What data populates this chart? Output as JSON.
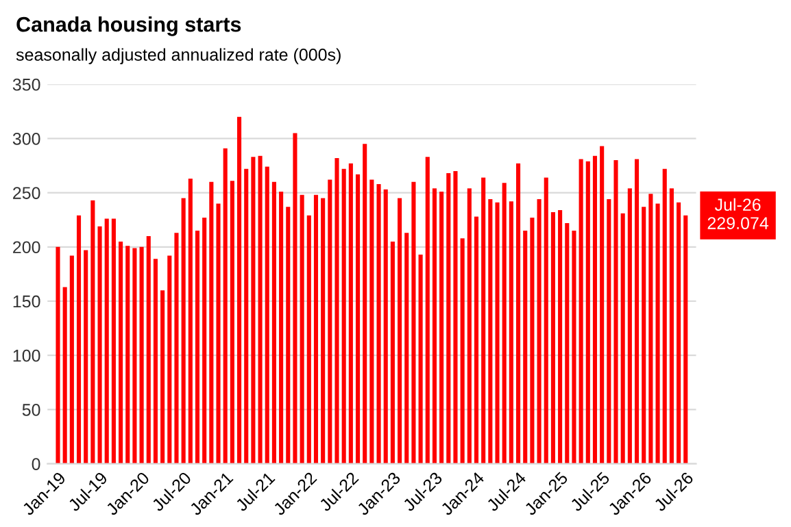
{
  "chart_data": {
    "type": "bar",
    "title": "Canada housing starts",
    "subtitle": "seasonally adjusted annualized rate (000s)",
    "categories": [
      "Jan-19",
      null,
      null,
      null,
      null,
      null,
      "Jul-19",
      null,
      null,
      null,
      null,
      null,
      "Jan-20",
      null,
      null,
      null,
      null,
      null,
      "Jul-20",
      null,
      null,
      null,
      null,
      null,
      "Jan-21",
      null,
      null,
      null,
      null,
      null,
      "Jul-21",
      null,
      null,
      null,
      null,
      null,
      "Jan-22",
      null,
      null,
      null,
      null,
      null,
      "Jul-22",
      null,
      null,
      null,
      null,
      null,
      "Jan-23",
      null,
      null,
      null,
      null,
      null,
      "Jul-23",
      null,
      null,
      null,
      null,
      null,
      "Jan-24",
      null,
      null,
      null,
      null,
      null,
      "Jul-24",
      null,
      null,
      null,
      null,
      null,
      "Jan-25",
      null,
      null,
      null,
      null,
      null,
      "Jul-25",
      null,
      null,
      null,
      null,
      null,
      "Jan-26",
      null,
      null,
      null,
      null,
      null,
      "Jul-26"
    ],
    "values": [
      200,
      163,
      192,
      229,
      197,
      243,
      219,
      226,
      226,
      205,
      201,
      199,
      200,
      210,
      189,
      160,
      192,
      213,
      245,
      263,
      215,
      227,
      260,
      240,
      291,
      261,
      320,
      272,
      283,
      284,
      274,
      260,
      251,
      237,
      305,
      248,
      229,
      248,
      245,
      262,
      282,
      272,
      277,
      267,
      295,
      262,
      258,
      253,
      205,
      245,
      213,
      260,
      193,
      283,
      254,
      251,
      268,
      270,
      208,
      254,
      228,
      264,
      244,
      241,
      259,
      242,
      277,
      215,
      227,
      244,
      264,
      232,
      234,
      222,
      215,
      281,
      279,
      284,
      293,
      244,
      280,
      231,
      254,
      281,
      237,
      249,
      240,
      272,
      254,
      241,
      229.074
    ],
    "color": "#ff0000",
    "ylim": [
      0,
      350
    ],
    "yticks": [
      0,
      50,
      100,
      150,
      200,
      250,
      300,
      350
    ],
    "grid": "y",
    "annotations": [
      {
        "text": "Jul-26\n229.074",
        "x": "Jul-26",
        "y": 229.074
      }
    ]
  }
}
